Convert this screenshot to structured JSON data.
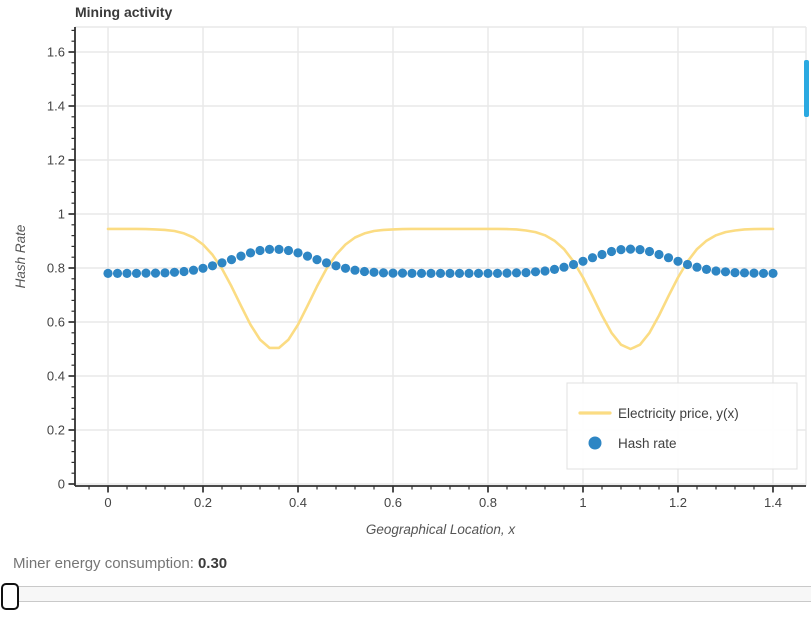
{
  "title": "Mining activity",
  "colors": {
    "price_line": "#fbdc83",
    "hash_dots": "#2e86c4",
    "scrollbar": "#2ba9e1",
    "grid": "#e8e8e8",
    "axis": "#303030",
    "tick_label": "#454545",
    "axis_label": "#555555"
  },
  "chart_data": {
    "type": "line+scatter",
    "title": "Mining activity",
    "xlabel": "Geographical Location, x",
    "ylabel": "Hash Rate",
    "x_range": [
      -0.0695,
      1.4695
    ],
    "y_range": [
      -0.0074,
      1.6926
    ],
    "x_ticks": [
      0,
      0.2,
      0.4,
      0.6,
      0.8,
      1,
      1.2,
      1.4
    ],
    "x_tick_labels": [
      "0",
      "0.2",
      "0.4",
      "0.6",
      "0.8",
      "1",
      "1.2",
      "1.4"
    ],
    "y_ticks": [
      0,
      0.2,
      0.4,
      0.6,
      0.8,
      1,
      1.2,
      1.4,
      1.6
    ],
    "y_tick_labels": [
      "0",
      "0.2",
      "0.4",
      "0.6",
      "0.8",
      "1",
      "1.2",
      "1.4",
      "1.6"
    ],
    "minor_tick_step": 0.04,
    "grid": true,
    "legend": {
      "position": "bottom-right",
      "entries": [
        {
          "label": "Electricity price, y(x)",
          "type": "line",
          "color": "#fbdc83"
        },
        {
          "label": "Hash rate",
          "type": "dot",
          "color": "#2e86c4"
        }
      ]
    },
    "series": [
      {
        "name": "Electricity price, y(x)",
        "type": "line",
        "color": "#fbdc83",
        "x": [
          0,
          0.02,
          0.04,
          0.06,
          0.08,
          0.1,
          0.12,
          0.14,
          0.16,
          0.18,
          0.2,
          0.22,
          0.24,
          0.26,
          0.28,
          0.3,
          0.32,
          0.34,
          0.36,
          0.38,
          0.4,
          0.42,
          0.44,
          0.46,
          0.48,
          0.5,
          0.52,
          0.54,
          0.56,
          0.58,
          0.6,
          0.62,
          0.64,
          0.66,
          0.68,
          0.7,
          0.72,
          0.74,
          0.76,
          0.78,
          0.8,
          0.82,
          0.84,
          0.86,
          0.88,
          0.9,
          0.92,
          0.94,
          0.96,
          0.98,
          1.0,
          1.02,
          1.04,
          1.06,
          1.08,
          1.1,
          1.12,
          1.14,
          1.16,
          1.18,
          1.2,
          1.22,
          1.24,
          1.26,
          1.28,
          1.3,
          1.32,
          1.34,
          1.36,
          1.38,
          1.4
        ],
        "y": [
          0.945,
          0.945,
          0.945,
          0.945,
          0.944,
          0.943,
          0.941,
          0.937,
          0.928,
          0.913,
          0.887,
          0.849,
          0.797,
          0.732,
          0.66,
          0.59,
          0.535,
          0.504,
          0.504,
          0.535,
          0.59,
          0.66,
          0.732,
          0.797,
          0.849,
          0.887,
          0.913,
          0.928,
          0.937,
          0.941,
          0.943,
          0.944,
          0.945,
          0.945,
          0.945,
          0.945,
          0.945,
          0.945,
          0.945,
          0.945,
          0.945,
          0.945,
          0.944,
          0.943,
          0.939,
          0.933,
          0.921,
          0.901,
          0.87,
          0.824,
          0.765,
          0.696,
          0.624,
          0.56,
          0.516,
          0.5,
          0.516,
          0.56,
          0.624,
          0.696,
          0.765,
          0.824,
          0.87,
          0.901,
          0.921,
          0.933,
          0.939,
          0.943,
          0.944,
          0.945,
          0.945
        ]
      },
      {
        "name": "Hash rate",
        "type": "scatter",
        "color": "#2e86c4",
        "x": [
          0,
          0.02,
          0.04,
          0.06,
          0.08,
          0.1,
          0.12,
          0.14,
          0.16,
          0.18,
          0.2,
          0.22,
          0.24,
          0.26,
          0.28,
          0.3,
          0.32,
          0.34,
          0.36,
          0.38,
          0.4,
          0.42,
          0.44,
          0.46,
          0.48,
          0.5,
          0.52,
          0.54,
          0.56,
          0.58,
          0.6,
          0.62,
          0.64,
          0.66,
          0.68,
          0.7,
          0.72,
          0.74,
          0.76,
          0.78,
          0.8,
          0.82,
          0.84,
          0.86,
          0.88,
          0.9,
          0.92,
          0.94,
          0.96,
          0.98,
          1.0,
          1.02,
          1.04,
          1.06,
          1.08,
          1.1,
          1.12,
          1.14,
          1.16,
          1.18,
          1.2,
          1.22,
          1.24,
          1.26,
          1.28,
          1.3,
          1.32,
          1.34,
          1.36,
          1.38,
          1.4
        ],
        "y": [
          0.78,
          0.78,
          0.78,
          0.78,
          0.781,
          0.781,
          0.782,
          0.784,
          0.787,
          0.792,
          0.799,
          0.808,
          0.819,
          0.831,
          0.844,
          0.856,
          0.865,
          0.869,
          0.869,
          0.865,
          0.856,
          0.844,
          0.831,
          0.819,
          0.808,
          0.799,
          0.792,
          0.787,
          0.784,
          0.782,
          0.781,
          0.781,
          0.78,
          0.78,
          0.78,
          0.78,
          0.78,
          0.78,
          0.78,
          0.78,
          0.78,
          0.78,
          0.781,
          0.782,
          0.783,
          0.786,
          0.789,
          0.795,
          0.803,
          0.813,
          0.825,
          0.838,
          0.85,
          0.861,
          0.868,
          0.87,
          0.868,
          0.861,
          0.85,
          0.838,
          0.825,
          0.813,
          0.803,
          0.795,
          0.789,
          0.786,
          0.783,
          0.782,
          0.781,
          0.78,
          0.78
        ]
      }
    ]
  },
  "status": {
    "label": "Miner energy consumption:",
    "value": "0.30"
  }
}
